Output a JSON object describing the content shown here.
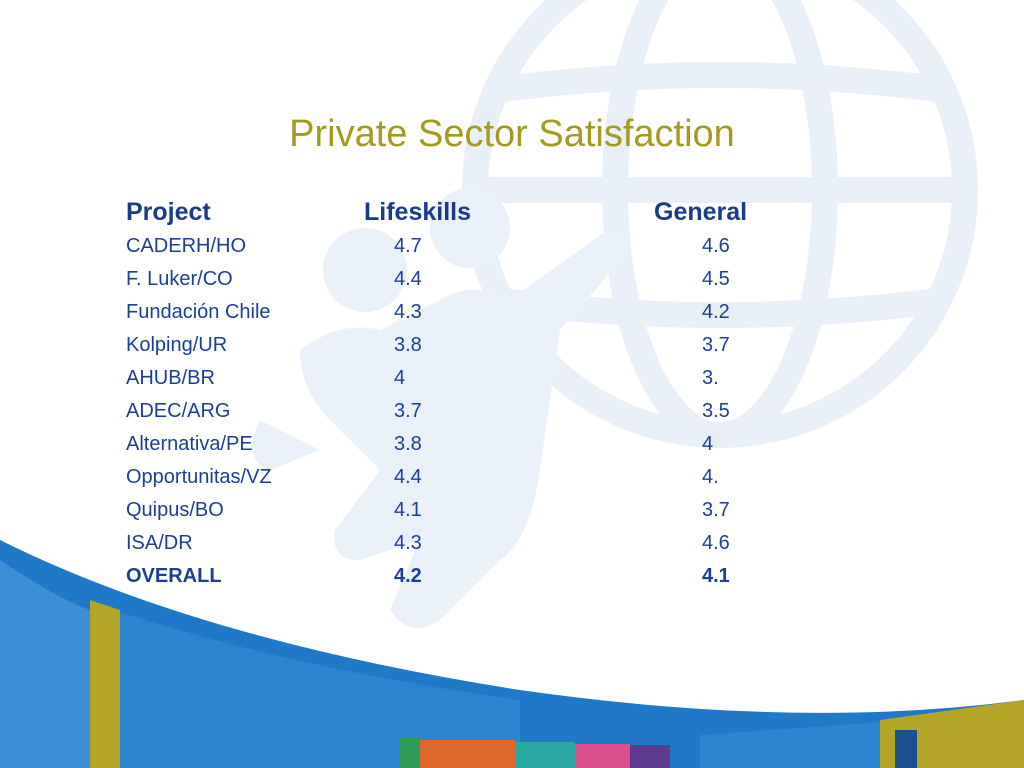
{
  "slide": {
    "title": "Private Sector Satisfaction",
    "columns": [
      "Project",
      "Lifeskills",
      "General"
    ],
    "rows": [
      {
        "project": "CADERH/HO",
        "lifeskills": "4.7",
        "general": "4.6"
      },
      {
        "project": "F. Luker/CO",
        "lifeskills": "4.4",
        "general": "4.5"
      },
      {
        "project": "Fundación Chile",
        "lifeskills": "4.3",
        "general": "4.2"
      },
      {
        "project": "Kolping/UR",
        "lifeskills": "3.8",
        "general": "3.7"
      },
      {
        "project": "AHUB/BR",
        "lifeskills": "4",
        "general": "3."
      },
      {
        "project": "ADEC/ARG",
        "lifeskills": "3.7",
        "general": "3.5"
      },
      {
        "project": "Alternativa/PE",
        "lifeskills": "3.8",
        "general": "4"
      },
      {
        "project": "Opportunitas/VZ",
        "lifeskills": "4.4",
        "general": "4."
      },
      {
        "project": "Quipus/BO",
        "lifeskills": "4.1",
        "general": "3.7"
      },
      {
        "project": "ISA/DR",
        "lifeskills": "4.3",
        "general": "4.6"
      }
    ],
    "total": {
      "project": "OVERALL",
      "lifeskills": "4.2",
      "general": "4.1"
    }
  },
  "theme": {
    "title_color": "#a59a1e",
    "text_color": "#1c3f95",
    "art_light_blue": "#e6eef6",
    "art_blue": "#1f78c8",
    "art_olive": "#b3a626"
  }
}
